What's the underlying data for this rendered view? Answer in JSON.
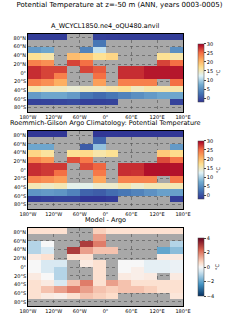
{
  "title": "Potential Temperature at z=-50 m (ANN, years 0003-0005)",
  "chart_data": [
    {
      "type": "heatmap",
      "title": "A_WCYCL1850.ne4_oQU480.anvil",
      "x": [
        -165,
        -135,
        -105,
        -75,
        -45,
        -15,
        15,
        45,
        75,
        105,
        135,
        165
      ],
      "y": [
        -82.5,
        -67.5,
        -52.5,
        -37.5,
        -22.5,
        -7.5,
        7.5,
        22.5,
        37.5,
        52.5,
        67.5,
        82.5
      ],
      "z": [
        [
          null,
          null,
          null,
          null,
          null,
          null,
          null,
          null,
          null,
          null,
          null,
          null
        ],
        [
          -1.2,
          -1.0,
          -0.8,
          -0.5,
          -1.3,
          -1.2,
          -1.0,
          null,
          null,
          null,
          null,
          -1.1
        ],
        [
          6,
          7,
          7,
          6,
          3,
          2,
          3,
          4,
          5,
          6,
          7,
          7
        ],
        [
          16,
          15,
          15,
          14,
          15,
          15,
          16,
          17,
          15,
          16,
          16,
          16
        ],
        [
          24,
          23,
          21,
          null,
          null,
          22,
          null,
          24,
          24,
          24,
          null,
          25
        ],
        [
          28,
          27,
          24,
          null,
          null,
          25,
          null,
          28,
          28,
          29,
          29,
          29
        ],
        [
          28,
          27,
          27,
          null,
          27,
          26,
          null,
          28,
          28,
          29,
          29,
          29
        ],
        [
          24,
          23,
          null,
          27,
          25,
          null,
          null,
          null,
          null,
          null,
          27,
          25
        ],
        [
          17,
          16,
          null,
          20,
          19,
          17,
          18,
          null,
          null,
          null,
          17,
          16
        ],
        [
          6,
          7,
          null,
          null,
          4,
          11,
          null,
          null,
          null,
          null,
          null,
          5
        ],
        [
          null,
          null,
          null,
          null,
          null,
          3,
          null,
          null,
          null,
          null,
          null,
          null
        ],
        [
          -1.5,
          -1.5,
          -1.5,
          null,
          null,
          -1.2,
          -1.4,
          -1.5,
          -1.5,
          -1.5,
          -1.5,
          -1.5
        ]
      ],
      "xlim": [
        -180,
        180
      ],
      "ylim": [
        -90,
        90
      ],
      "xticks": [
        {
          "value": -180,
          "label": "180°W"
        },
        {
          "value": -120,
          "label": "120°W"
        },
        {
          "value": -60,
          "label": "60°W"
        },
        {
          "value": 0,
          "label": "0°"
        },
        {
          "value": 60,
          "label": "60°E"
        },
        {
          "value": 120,
          "label": "120°E"
        },
        {
          "value": 180,
          "label": "180°E"
        }
      ],
      "yticks": [
        {
          "value": -80,
          "label": "80°S"
        },
        {
          "value": -60,
          "label": "60°S"
        },
        {
          "value": -40,
          "label": "40°S"
        },
        {
          "value": -20,
          "label": "20°S"
        },
        {
          "value": 0,
          "label": "0°"
        },
        {
          "value": 20,
          "label": "20°N"
        },
        {
          "value": 40,
          "label": "40°N"
        },
        {
          "value": 60,
          "label": "60°N"
        },
        {
          "value": 80,
          "label": "80°N"
        }
      ],
      "colorbar_range": [
        -2,
        30
      ],
      "colorbar_ticks": [
        0,
        5,
        10,
        15,
        20,
        25,
        30
      ],
      "colorbar_label": "°C",
      "grid": true
    },
    {
      "type": "heatmap",
      "title": "Roemmich-Gilson Argo Climatology: Potential Temperature",
      "x": [
        -165,
        -135,
        -105,
        -75,
        -45,
        -15,
        15,
        45,
        75,
        105,
        135,
        165
      ],
      "y": [
        -82.5,
        -67.5,
        -52.5,
        -37.5,
        -22.5,
        -7.5,
        7.5,
        22.5,
        37.5,
        52.5,
        67.5,
        82.5
      ],
      "z": [
        [
          null,
          null,
          null,
          null,
          null,
          null,
          null,
          null,
          null,
          null,
          null,
          null
        ],
        [
          -1.7,
          -1.3,
          -1.0,
          -1.0,
          -2.3,
          -2.0,
          -1.6,
          null,
          null,
          null,
          null,
          -1.5
        ],
        [
          5.5,
          6,
          5.5,
          4,
          1.5,
          1,
          2.2,
          3,
          4,
          5.2,
          6.5,
          6.5
        ],
        [
          15.5,
          14.7,
          15.5,
          13,
          13,
          14.5,
          14.5,
          16,
          14.5,
          15.5,
          15.5,
          15.5
        ],
        [
          23.7,
          23,
          22,
          null,
          null,
          21.5,
          null,
          23.7,
          23.8,
          23.7,
          null,
          24.7
        ],
        [
          28,
          27.5,
          25,
          null,
          null,
          24.5,
          null,
          28,
          27.8,
          29.3,
          29.3,
          29.2
        ],
        [
          28,
          27.5,
          27.5,
          null,
          26.7,
          25.5,
          null,
          28,
          28,
          29.3,
          29.3,
          29.2
        ],
        [
          23.7,
          22.5,
          null,
          26.5,
          24.5,
          null,
          null,
          null,
          null,
          null,
          26.7,
          24.7
        ],
        [
          18,
          16.5,
          null,
          17,
          17.5,
          16,
          17,
          null,
          null,
          null,
          19,
          17.5
        ],
        [
          7,
          7,
          null,
          null,
          1,
          9,
          null,
          null,
          null,
          null,
          null,
          6
        ],
        [
          null,
          null,
          null,
          null,
          null,
          1.5,
          null,
          null,
          null,
          null,
          null,
          null
        ],
        [
          -2,
          -2,
          -2,
          null,
          null,
          -2,
          -1.9,
          -2,
          -2,
          -2,
          -2,
          -2
        ]
      ],
      "xlim": [
        -180,
        180
      ],
      "ylim": [
        -90,
        90
      ],
      "xticks": [
        {
          "value": -180,
          "label": "180°W"
        },
        {
          "value": -120,
          "label": "120°W"
        },
        {
          "value": -60,
          "label": "60°W"
        },
        {
          "value": 0,
          "label": "0°"
        },
        {
          "value": 60,
          "label": "60°E"
        },
        {
          "value": 120,
          "label": "120°E"
        },
        {
          "value": 180,
          "label": "180°E"
        }
      ],
      "yticks": [
        {
          "value": -80,
          "label": "80°S"
        },
        {
          "value": -60,
          "label": "60°S"
        },
        {
          "value": -40,
          "label": "40°S"
        },
        {
          "value": -20,
          "label": "20°S"
        },
        {
          "value": 0,
          "label": "0°"
        },
        {
          "value": 20,
          "label": "20°N"
        },
        {
          "value": 40,
          "label": "40°N"
        },
        {
          "value": 60,
          "label": "60°N"
        },
        {
          "value": 80,
          "label": "80°N"
        }
      ],
      "colorbar_range": [
        -2,
        30
      ],
      "colorbar_ticks": [
        0,
        5,
        10,
        15,
        20,
        25,
        30
      ],
      "colorbar_label": "°C",
      "grid": true
    },
    {
      "type": "heatmap",
      "title": "Model - Argo",
      "x": [
        -165,
        -135,
        -105,
        -75,
        -45,
        -15,
        15,
        45,
        75,
        105,
        135,
        165
      ],
      "y": [
        -82.5,
        -67.5,
        -52.5,
        -37.5,
        -22.5,
        -7.5,
        7.5,
        22.5,
        37.5,
        52.5,
        67.5,
        82.5
      ],
      "z": [
        [
          null,
          null,
          null,
          null,
          null,
          null,
          null,
          null,
          null,
          null,
          null,
          null
        ],
        [
          0.5,
          0.3,
          0.2,
          0.5,
          1,
          0.8,
          0.6,
          null,
          null,
          null,
          null,
          0.4
        ],
        [
          0.5,
          1,
          1.5,
          2,
          1.5,
          1,
          0.8,
          1,
          1,
          0.8,
          0.5,
          0.5
        ],
        [
          0.5,
          0.3,
          -0.5,
          1,
          2,
          0.5,
          1.5,
          1,
          0.5,
          0.5,
          0.5,
          0.5
        ],
        [
          0.3,
          0,
          -1,
          null,
          null,
          0.5,
          null,
          0.3,
          0.2,
          0.3,
          null,
          0.3
        ],
        [
          0,
          -0.5,
          -1,
          null,
          null,
          0.5,
          null,
          0,
          0.2,
          -0.3,
          -0.3,
          -0.2
        ],
        [
          0,
          -0.5,
          -0.5,
          null,
          0.3,
          0.5,
          null,
          0,
          0,
          -0.3,
          -0.3,
          -0.2
        ],
        [
          0.3,
          0.5,
          null,
          0.5,
          0.5,
          null,
          null,
          null,
          null,
          null,
          0.3,
          0.3
        ],
        [
          -1,
          -0.5,
          null,
          3,
          1.5,
          1,
          1,
          null,
          null,
          null,
          -2,
          -1.5
        ],
        [
          -1,
          0,
          null,
          null,
          3,
          2,
          null,
          null,
          null,
          null,
          null,
          -1
        ],
        [
          null,
          null,
          null,
          null,
          null,
          1.5,
          null,
          null,
          null,
          null,
          null,
          null
        ],
        [
          0.5,
          0.5,
          0.5,
          null,
          null,
          0.8,
          0.5,
          0.5,
          0.5,
          0.5,
          0.5,
          0.5
        ]
      ],
      "xlim": [
        -180,
        180
      ],
      "ylim": [
        -90,
        90
      ],
      "xticks": [
        {
          "value": -180,
          "label": "180°W"
        },
        {
          "value": -120,
          "label": "120°W"
        },
        {
          "value": -60,
          "label": "60°W"
        },
        {
          "value": 0,
          "label": "0°"
        },
        {
          "value": 60,
          "label": "60°E"
        },
        {
          "value": 120,
          "label": "120°E"
        },
        {
          "value": 180,
          "label": "180°E"
        }
      ],
      "yticks": [
        {
          "value": -80,
          "label": "80°S"
        },
        {
          "value": -60,
          "label": "60°S"
        },
        {
          "value": -40,
          "label": "40°S"
        },
        {
          "value": -20,
          "label": "20°S"
        },
        {
          "value": 0,
          "label": "0°"
        },
        {
          "value": 20,
          "label": "20°N"
        },
        {
          "value": 40,
          "label": "40°N"
        },
        {
          "value": 60,
          "label": "60°N"
        },
        {
          "value": 80,
          "label": "80°N"
        }
      ],
      "colorbar_range": [
        -4,
        4
      ],
      "colorbar_ticks": [
        -4,
        -2,
        0,
        2,
        4
      ],
      "colorbar_label": "°C",
      "grid": true
    }
  ]
}
